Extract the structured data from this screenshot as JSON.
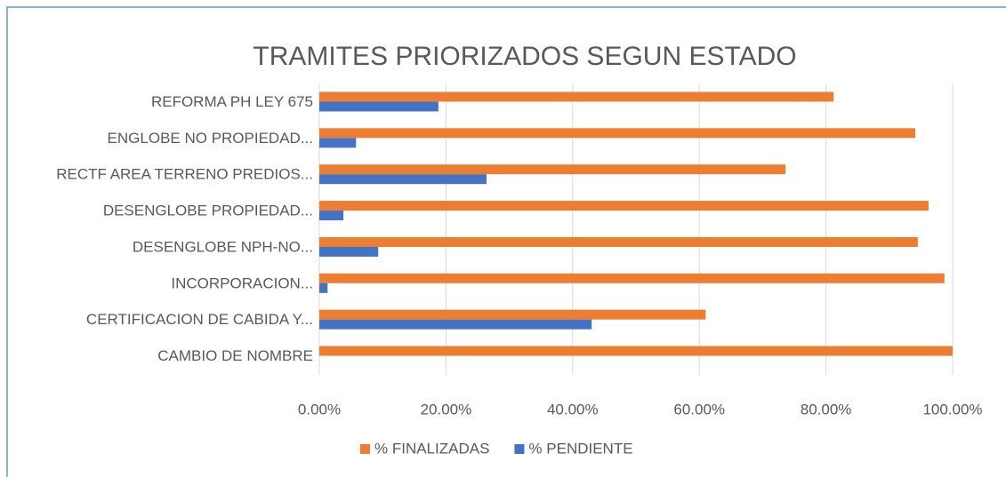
{
  "chart_data": {
    "type": "bar",
    "orientation": "horizontal",
    "title": "TRAMITES PRIORIZADOS SEGUN ESTADO",
    "categories": [
      "REFORMA PH LEY 675",
      "ENGLOBE NO PROPIEDAD...",
      "RECTF AREA TERRENO PREDIOS...",
      "DESENGLOBE PROPIEDAD...",
      "DESENGLOBE NPH-NO...",
      "INCORPORACION...",
      "CERTIFICACION DE CABIDA Y...",
      "CAMBIO DE NOMBRE"
    ],
    "series": [
      {
        "name": "% FINALIZADAS",
        "color": "#ed7d31",
        "values": [
          81.2,
          94.1,
          73.6,
          96.2,
          94.5,
          98.7,
          61.0,
          100
        ]
      },
      {
        "name": "% PENDIENTE",
        "color": "#4472c4",
        "values": [
          18.8,
          5.8,
          26.4,
          3.8,
          9.3,
          1.3,
          43.0,
          0
        ]
      }
    ],
    "xlim": [
      0,
      100
    ],
    "xticks": [
      {
        "value": 0,
        "label": "0.00%"
      },
      {
        "value": 20,
        "label": "20.00%"
      },
      {
        "value": 40,
        "label": "40.00%"
      },
      {
        "value": 60,
        "label": "60.00%"
      },
      {
        "value": 80,
        "label": "80.00%"
      },
      {
        "value": 100,
        "label": "100.00%"
      }
    ],
    "grid": true,
    "legend": "bottom"
  }
}
